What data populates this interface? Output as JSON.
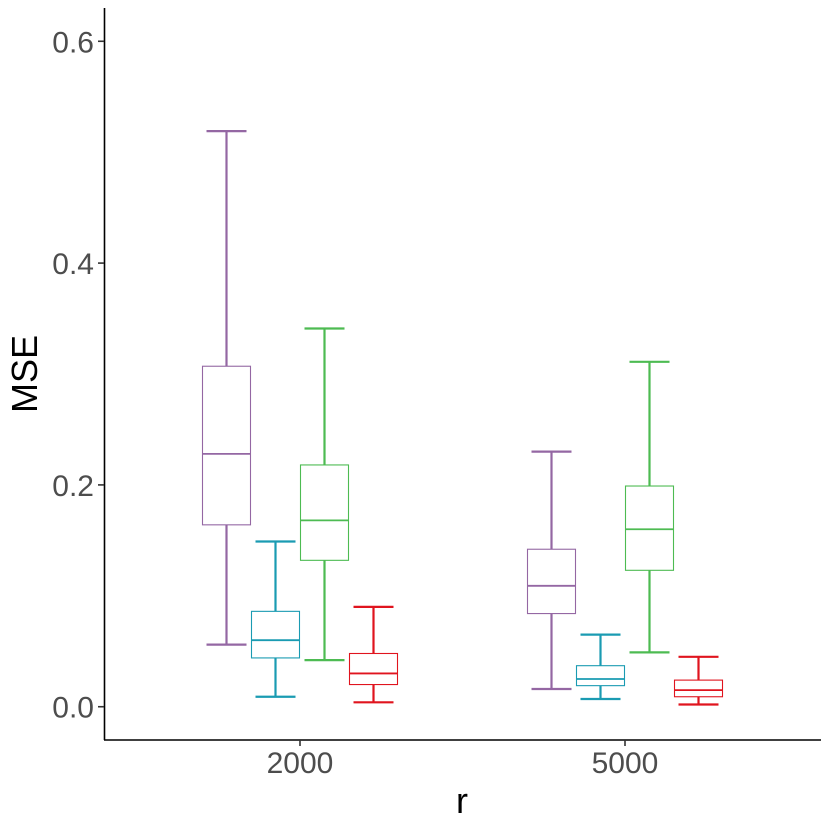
{
  "chart_data": {
    "type": "box",
    "title": "",
    "xlabel": "r",
    "ylabel": "MSE",
    "categories": [
      "2000",
      "5000"
    ],
    "ylim": [
      -0.03,
      0.63
    ],
    "yticks": [
      0.0,
      0.2,
      0.4,
      0.6
    ],
    "ytick_labels": [
      "0.0",
      "0.2",
      "0.4",
      "0.6"
    ],
    "grid": false,
    "legend": "none",
    "series": [
      {
        "color": "#9467a3",
        "boxes": [
          {
            "category": "2000",
            "whisker_low": 0.056,
            "q1": 0.164,
            "median": 0.228,
            "q3": 0.307,
            "whisker_high": 0.519
          },
          {
            "category": "5000",
            "whisker_low": 0.016,
            "q1": 0.084,
            "median": 0.109,
            "q3": 0.142,
            "whisker_high": 0.23
          }
        ]
      },
      {
        "color": "#1a9bb2",
        "boxes": [
          {
            "category": "2000",
            "whisker_low": 0.009,
            "q1": 0.044,
            "median": 0.06,
            "q3": 0.086,
            "whisker_high": 0.149
          },
          {
            "category": "5000",
            "whisker_low": 0.007,
            "q1": 0.019,
            "median": 0.025,
            "q3": 0.037,
            "whisker_high": 0.065
          }
        ]
      },
      {
        "color": "#4dbb52",
        "boxes": [
          {
            "category": "2000",
            "whisker_low": 0.042,
            "q1": 0.132,
            "median": 0.168,
            "q3": 0.218,
            "whisker_high": 0.341
          },
          {
            "category": "5000",
            "whisker_low": 0.049,
            "q1": 0.123,
            "median": 0.16,
            "q3": 0.199,
            "whisker_high": 0.311
          }
        ]
      },
      {
        "color": "#e0141e",
        "boxes": [
          {
            "category": "2000",
            "whisker_low": 0.004,
            "q1": 0.02,
            "median": 0.03,
            "q3": 0.048,
            "whisker_high": 0.09
          },
          {
            "category": "5000",
            "whisker_low": 0.002,
            "q1": 0.009,
            "median": 0.015,
            "q3": 0.024,
            "whisker_high": 0.045
          }
        ]
      }
    ]
  }
}
